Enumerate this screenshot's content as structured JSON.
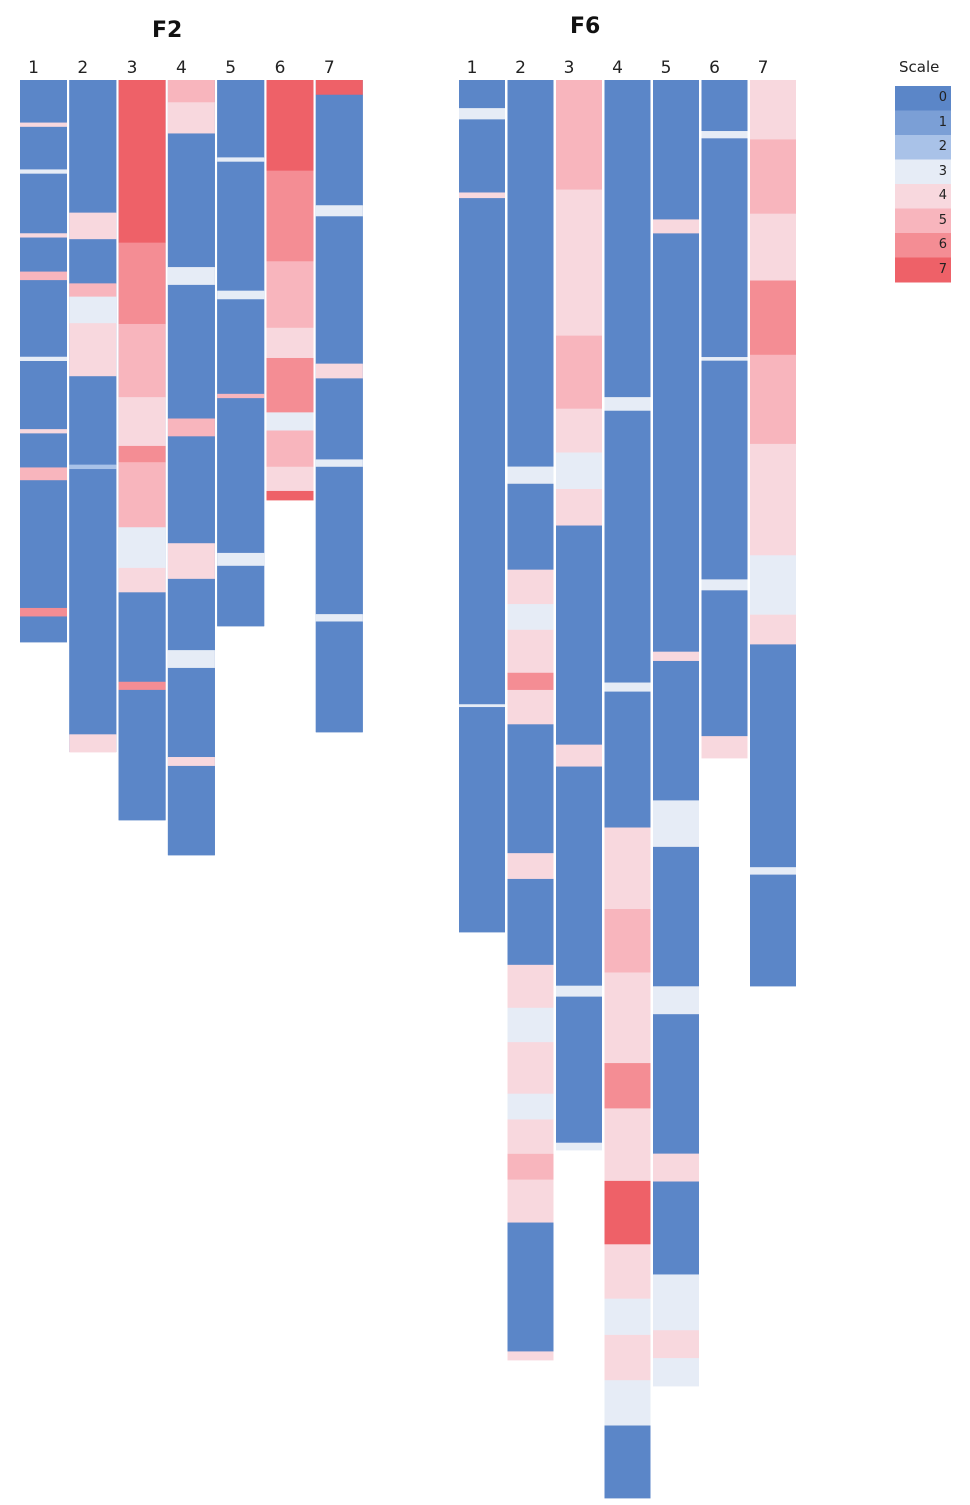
{
  "chart_data": {
    "type": "heatmap",
    "scale_title": "Scale",
    "scale_levels": [
      {
        "value": 0,
        "label": "0",
        "color": "#5b86c8"
      },
      {
        "value": 1,
        "label": "1",
        "color": "#7b9fd6"
      },
      {
        "value": 2,
        "label": "2",
        "color": "#a9c2e8"
      },
      {
        "value": 3,
        "label": "3",
        "color": "#e6ecf6"
      },
      {
        "value": 4,
        "label": "4",
        "color": "#f8d8de"
      },
      {
        "value": 5,
        "label": "5",
        "color": "#f8b5bd"
      },
      {
        "value": 6,
        "label": "6",
        "color": "#f48d94"
      },
      {
        "value": 7,
        "label": "7",
        "color": "#ee6168"
      }
    ],
    "panels": [
      {
        "title": "F2",
        "columns": [
          {
            "label": "1",
            "runs": [
              [
                0,
                10
              ],
              [
                4,
                1
              ],
              [
                0,
                10
              ],
              [
                3,
                1
              ],
              [
                0,
                14
              ],
              [
                4,
                1
              ],
              [
                0,
                8
              ],
              [
                5,
                2
              ],
              [
                0,
                18
              ],
              [
                3,
                1
              ],
              [
                0,
                16
              ],
              [
                4,
                1
              ],
              [
                0,
                8
              ],
              [
                5,
                3
              ],
              [
                0,
                30
              ],
              [
                6,
                2
              ],
              [
                0,
                6
              ]
            ]
          },
          {
            "label": "2",
            "runs": [
              [
                0,
                30
              ],
              [
                4,
                6
              ],
              [
                0,
                10
              ],
              [
                5,
                3
              ],
              [
                3,
                6
              ],
              [
                4,
                12
              ],
              [
                0,
                20
              ],
              [
                2,
                1
              ],
              [
                0,
                60
              ],
              [
                4,
                4
              ]
            ]
          },
          {
            "label": "3",
            "runs": [
              [
                7,
                40
              ],
              [
                6,
                20
              ],
              [
                5,
                18
              ],
              [
                4,
                12
              ],
              [
                6,
                4
              ],
              [
                5,
                16
              ],
              [
                3,
                10
              ],
              [
                4,
                6
              ],
              [
                0,
                22
              ],
              [
                6,
                2
              ],
              [
                0,
                32
              ]
            ]
          },
          {
            "label": "4",
            "runs": [
              [
                5,
                5
              ],
              [
                4,
                7
              ],
              [
                0,
                30
              ],
              [
                3,
                4
              ],
              [
                0,
                30
              ],
              [
                5,
                4
              ],
              [
                0,
                24
              ],
              [
                4,
                8
              ],
              [
                0,
                16
              ],
              [
                3,
                4
              ],
              [
                0,
                20
              ],
              [
                4,
                2
              ],
              [
                0,
                20
              ]
            ]
          },
          {
            "label": "5",
            "runs": [
              [
                0,
                18
              ],
              [
                3,
                1
              ],
              [
                0,
                30
              ],
              [
                3,
                2
              ],
              [
                0,
                22
              ],
              [
                5,
                1
              ],
              [
                0,
                36
              ],
              [
                3,
                3
              ],
              [
                0,
                14
              ]
            ]
          },
          {
            "label": "6",
            "runs": [
              [
                7,
                30
              ],
              [
                6,
                30
              ],
              [
                5,
                22
              ],
              [
                4,
                10
              ],
              [
                6,
                18
              ],
              [
                3,
                6
              ],
              [
                5,
                12
              ],
              [
                4,
                8
              ],
              [
                7,
                3
              ]
            ]
          },
          {
            "label": "7",
            "runs": [
              [
                7,
                4
              ],
              [
                0,
                30
              ],
              [
                3,
                3
              ],
              [
                0,
                40
              ],
              [
                4,
                4
              ],
              [
                0,
                22
              ],
              [
                3,
                2
              ],
              [
                0,
                40
              ],
              [
                3,
                2
              ],
              [
                0,
                30
              ]
            ]
          }
        ]
      },
      {
        "title": "F6",
        "columns": [
          {
            "label": "1",
            "runs": [
              [
                0,
                10
              ],
              [
                3,
                4
              ],
              [
                0,
                26
              ],
              [
                4,
                2
              ],
              [
                0,
                180
              ],
              [
                3,
                1
              ],
              [
                0,
                80
              ]
            ]
          },
          {
            "label": "2",
            "runs": [
              [
                0,
                90
              ],
              [
                3,
                4
              ],
              [
                0,
                20
              ],
              [
                4,
                8
              ],
              [
                3,
                6
              ],
              [
                4,
                10
              ],
              [
                6,
                4
              ],
              [
                4,
                8
              ],
              [
                0,
                30
              ],
              [
                4,
                6
              ],
              [
                0,
                20
              ],
              [
                4,
                10
              ],
              [
                3,
                8
              ],
              [
                4,
                12
              ],
              [
                3,
                6
              ],
              [
                4,
                8
              ],
              [
                5,
                6
              ],
              [
                4,
                10
              ],
              [
                0,
                30
              ],
              [
                4,
                2
              ]
            ]
          },
          {
            "label": "3",
            "runs": [
              [
                5,
                30
              ],
              [
                4,
                40
              ],
              [
                5,
                20
              ],
              [
                4,
                12
              ],
              [
                3,
                10
              ],
              [
                4,
                10
              ],
              [
                0,
                60
              ],
              [
                4,
                6
              ],
              [
                0,
                60
              ],
              [
                3,
                3
              ],
              [
                0,
                40
              ],
              [
                3,
                2
              ]
            ]
          },
          {
            "label": "4",
            "runs": [
              [
                0,
                70
              ],
              [
                3,
                3
              ],
              [
                0,
                60
              ],
              [
                3,
                2
              ],
              [
                0,
                30
              ],
              [
                4,
                18
              ],
              [
                5,
                14
              ],
              [
                4,
                20
              ],
              [
                6,
                10
              ],
              [
                4,
                16
              ],
              [
                7,
                14
              ],
              [
                4,
                12
              ],
              [
                3,
                8
              ],
              [
                4,
                10
              ],
              [
                3,
                10
              ],
              [
                0,
                16
              ]
            ]
          },
          {
            "label": "5",
            "runs": [
              [
                0,
                30
              ],
              [
                4,
                3
              ],
              [
                0,
                90
              ],
              [
                4,
                2
              ],
              [
                0,
                30
              ],
              [
                3,
                10
              ],
              [
                0,
                30
              ],
              [
                3,
                6
              ],
              [
                0,
                30
              ],
              [
                4,
                6
              ],
              [
                0,
                20
              ],
              [
                3,
                12
              ],
              [
                4,
                6
              ],
              [
                3,
                6
              ]
            ]
          },
          {
            "label": "6",
            "runs": [
              [
                0,
                14
              ],
              [
                3,
                2
              ],
              [
                0,
                60
              ],
              [
                3,
                1
              ],
              [
                0,
                60
              ],
              [
                3,
                3
              ],
              [
                0,
                40
              ],
              [
                4,
                6
              ]
            ]
          },
          {
            "label": "7",
            "runs": [
              [
                4,
                16
              ],
              [
                5,
                20
              ],
              [
                4,
                18
              ],
              [
                6,
                20
              ],
              [
                5,
                24
              ],
              [
                4,
                30
              ],
              [
                3,
                16
              ],
              [
                4,
                8
              ],
              [
                0,
                60
              ],
              [
                3,
                2
              ],
              [
                0,
                30
              ]
            ]
          }
        ]
      }
    ]
  }
}
